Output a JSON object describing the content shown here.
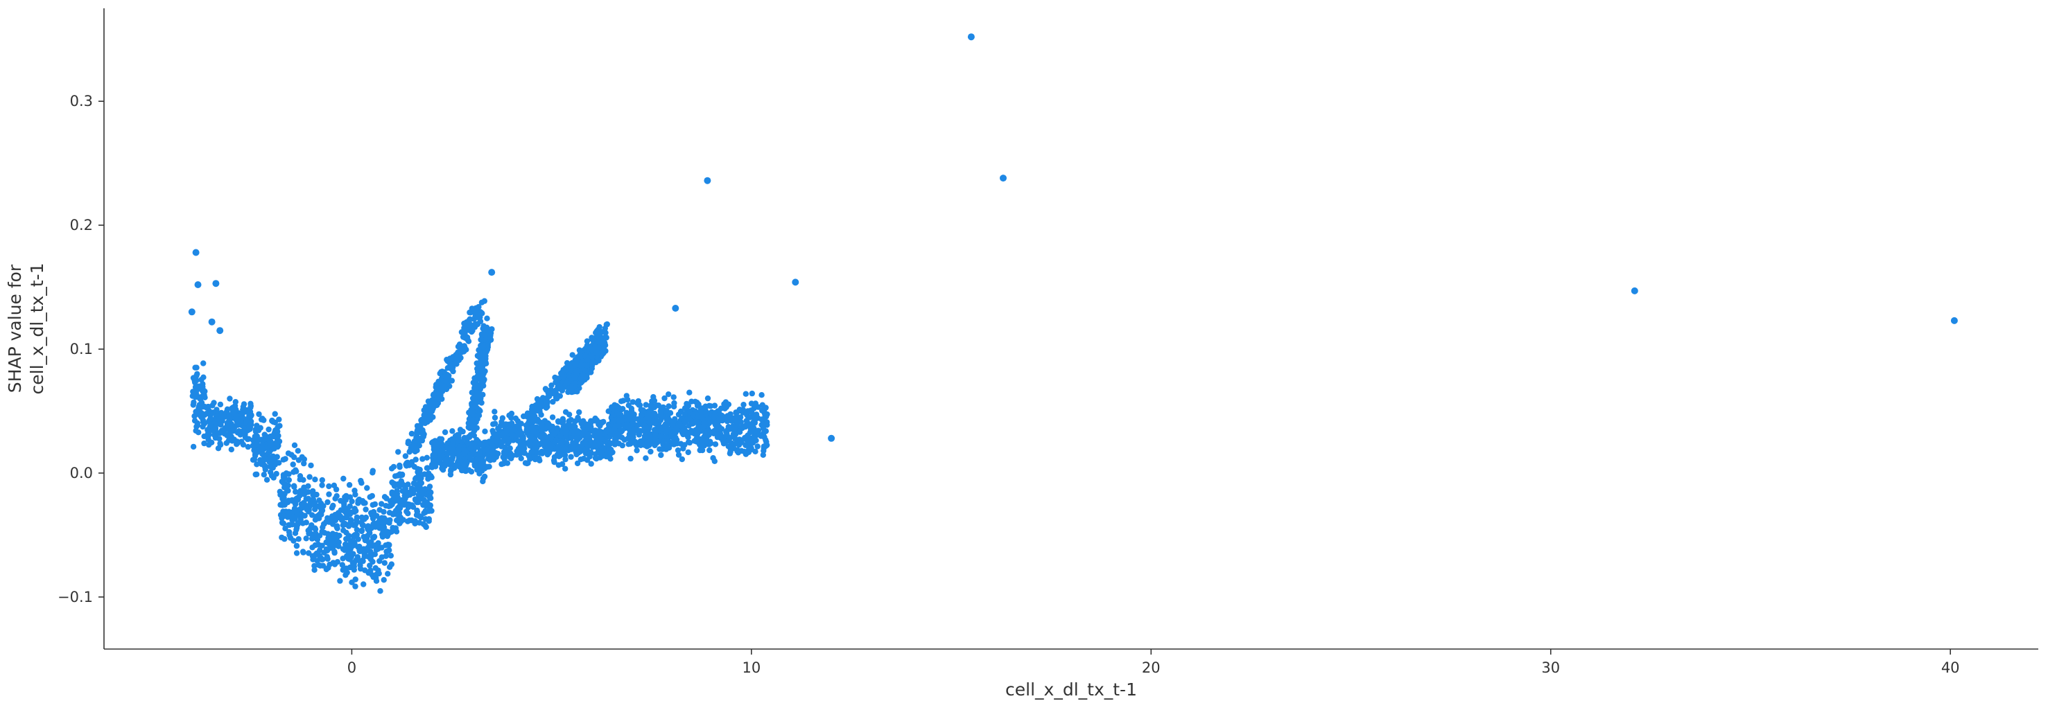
{
  "chart_data": {
    "type": "scatter",
    "title": "",
    "xlabel": "cell_x_dl_tx_t-1",
    "ylabel_lines": [
      "SHAP value for",
      "cell_x_dl_tx_t-1"
    ],
    "xlim": [
      -6.2,
      42.2
    ],
    "ylim": [
      -0.142,
      0.375
    ],
    "x_ticks": [
      {
        "value": 0,
        "label": "0"
      },
      {
        "value": 10,
        "label": "10"
      },
      {
        "value": 20,
        "label": "20"
      },
      {
        "value": 30,
        "label": "30"
      },
      {
        "value": 40,
        "label": "40"
      }
    ],
    "y_ticks": [
      {
        "value": -0.1,
        "label": "−0.1"
      },
      {
        "value": 0.0,
        "label": "0.0"
      },
      {
        "value": 0.1,
        "label": "0.1"
      },
      {
        "value": 0.2,
        "label": "0.2"
      },
      {
        "value": 0.3,
        "label": "0.3"
      }
    ],
    "grid": false,
    "legend": "none",
    "point_color": "#1e88e5",
    "main_cluster": [
      {
        "x_min": -4.0,
        "x_max": -3.6,
        "y_min": 0.01,
        "y_max": 0.1
      },
      {
        "x_min": -3.6,
        "x_max": -2.5,
        "y_min": 0.015,
        "y_max": 0.065
      },
      {
        "x_min": -2.5,
        "x_max": -1.8,
        "y_min": -0.01,
        "y_max": 0.055
      },
      {
        "x_min": -1.8,
        "x_max": -1.0,
        "y_min": -0.08,
        "y_max": 0.03
      },
      {
        "x_min": -1.0,
        "x_max": 0.0,
        "y_min": -0.11,
        "y_max": 0.01
      },
      {
        "x_min": 0.0,
        "x_max": 1.0,
        "y_min": -0.115,
        "y_max": 0.01
      },
      {
        "x_min": 1.0,
        "x_max": 2.0,
        "y_min": -0.06,
        "y_max": 0.03
      },
      {
        "x_min": 2.0,
        "x_max": 3.5,
        "y_min": -0.01,
        "y_max": 0.04
      },
      {
        "x_min": 3.5,
        "x_max": 6.5,
        "y_min": 0.0,
        "y_max": 0.055
      },
      {
        "x_min": 6.5,
        "x_max": 10.4,
        "y_min": 0.005,
        "y_max": 0.07
      }
    ],
    "arms": [
      {
        "x_start": 1.5,
        "x_end": 3.2,
        "y_start": 0.02,
        "y_end": 0.135
      },
      {
        "x_start": 3.0,
        "x_end": 3.4,
        "y_start": 0.035,
        "y_end": 0.12
      },
      {
        "x_start": 4.5,
        "x_end": 6.3,
        "y_start": 0.045,
        "y_end": 0.115
      },
      {
        "x_start": 5.5,
        "x_end": 6.3,
        "y_start": 0.07,
        "y_end": 0.105
      }
    ],
    "outliers": [
      {
        "x": -4.0,
        "y": 0.13
      },
      {
        "x": -3.9,
        "y": 0.178
      },
      {
        "x": -3.85,
        "y": 0.152
      },
      {
        "x": -3.5,
        "y": 0.122
      },
      {
        "x": -3.4,
        "y": 0.153
      },
      {
        "x": -3.3,
        "y": 0.115
      },
      {
        "x": 3.5,
        "y": 0.162
      },
      {
        "x": 8.1,
        "y": 0.133
      },
      {
        "x": 8.9,
        "y": 0.236
      },
      {
        "x": 11.1,
        "y": 0.154
      },
      {
        "x": 12.0,
        "y": 0.028
      },
      {
        "x": 15.5,
        "y": 0.352
      },
      {
        "x": 16.3,
        "y": 0.238
      },
      {
        "x": 32.1,
        "y": 0.147
      },
      {
        "x": 40.1,
        "y": 0.123
      }
    ]
  }
}
